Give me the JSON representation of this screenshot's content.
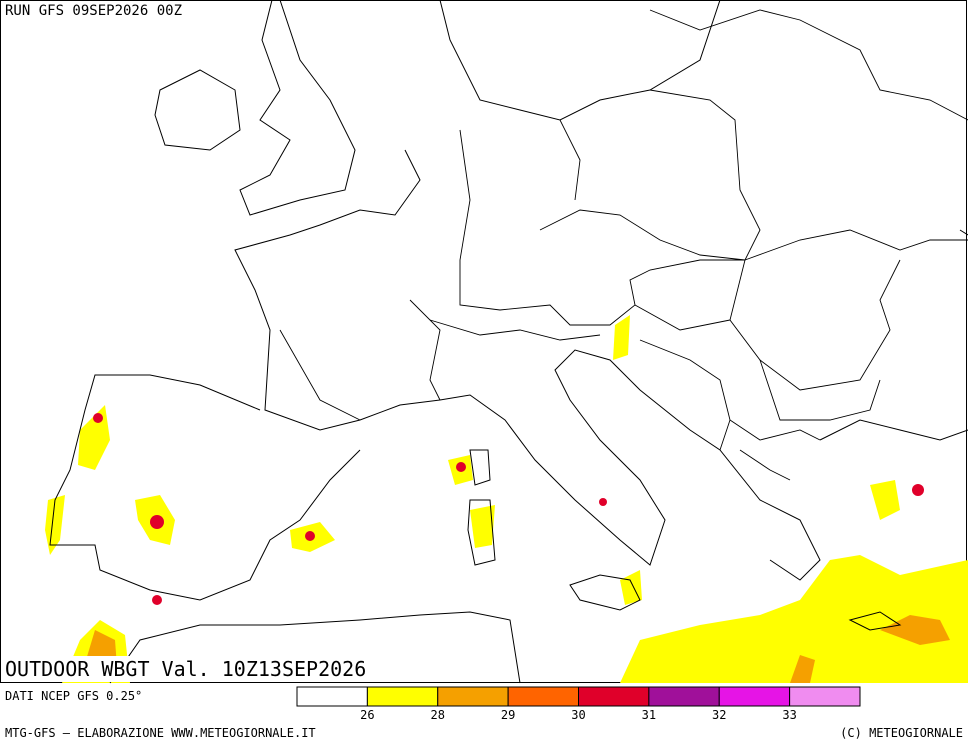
{
  "header": {
    "run": "RUN GFS 09SEP2026 00Z",
    "field": "OUTDOOR WBGT Val. 10Z13SEP2026"
  },
  "footer": {
    "source": "DATI NCEP GFS 0.25°",
    "credit": "MTG-GFS – ELABORAZIONE WWW.METEOGIORNALE.IT",
    "copyright": "(C) METEOGIORNALE"
  },
  "legend": {
    "thresholds": [
      26,
      28,
      29,
      30,
      31,
      32,
      33
    ],
    "colors": [
      "#ffffff",
      "#ffff00",
      "#f5a000",
      "#ff6400",
      "#e0002a",
      "#a0109a",
      "#e614e6",
      "#f08cf0"
    ]
  }
}
